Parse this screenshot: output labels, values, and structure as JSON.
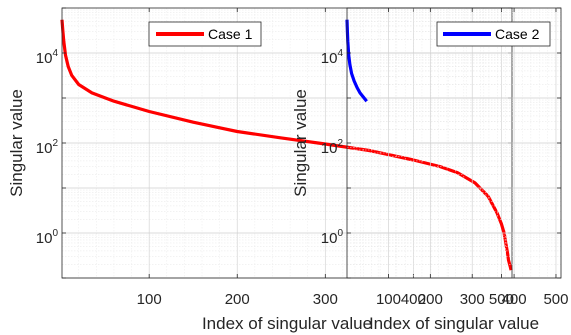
{
  "chart_data": [
    {
      "type": "line",
      "xlabel": "Index of singular value",
      "ylabel": "Singular value",
      "xlim": [
        1,
        512
      ],
      "ylim": [
        0.1,
        100000
      ],
      "yscale": "log",
      "grid": true,
      "minor_grid": true,
      "legend_placement": "top-right",
      "x_ticks": [
        {
          "value": 100,
          "label": "100"
        },
        {
          "value": 200,
          "label": "200"
        },
        {
          "value": 300,
          "label": "300"
        },
        {
          "value": 400,
          "label": "400"
        },
        {
          "value": 500,
          "label": "500"
        }
      ],
      "y_ticks": [
        {
          "value": 1,
          "base": "10",
          "exp": "0"
        },
        {
          "value": 100,
          "base": "10",
          "exp": "2"
        },
        {
          "value": 10000,
          "base": "10",
          "exp": "4"
        }
      ],
      "series": [
        {
          "name": "Case 1",
          "color": "#ff0000",
          "x": [
            1,
            2,
            3,
            5,
            8,
            12,
            20,
            35,
            60,
            100,
            150,
            200,
            250,
            300,
            350,
            400,
            430,
            450,
            470,
            485,
            495,
            500,
            503,
            505,
            507,
            508,
            510,
            511
          ],
          "y": [
            55000,
            30000,
            18000,
            9000,
            5000,
            3200,
            2000,
            1300,
            850,
            500,
            290,
            180,
            130,
            95,
            68,
            42,
            30,
            22,
            13,
            6.5,
            2.8,
            1.6,
            1.0,
            0.6,
            0.35,
            0.25,
            0.18,
            0.15
          ]
        }
      ]
    },
    {
      "type": "line",
      "xlabel": "Index of singular value",
      "ylabel": "Singular value",
      "xlim": [
        1,
        512
      ],
      "ylim": [
        0.1,
        100000
      ],
      "yscale": "log",
      "grid": true,
      "minor_grid": true,
      "legend_placement": "top-right",
      "x_ticks": [
        {
          "value": 100,
          "label": "100"
        },
        {
          "value": 200,
          "label": "200"
        },
        {
          "value": 300,
          "label": "300"
        },
        {
          "value": 400,
          "label": "400"
        },
        {
          "value": 500,
          "label": "500"
        }
      ],
      "y_ticks": [
        {
          "value": 1,
          "base": "10",
          "exp": "0"
        },
        {
          "value": 100,
          "base": "10",
          "exp": "2"
        },
        {
          "value": 10000,
          "base": "10",
          "exp": "4"
        }
      ],
      "series": [
        {
          "name": "Case 2",
          "color": "#0000ff",
          "x": [
            1,
            2,
            3,
            5,
            8,
            12,
            18,
            25,
            32,
            40,
            48
          ],
          "y": [
            55000,
            30000,
            18000,
            9000,
            5500,
            3500,
            2400,
            1700,
            1300,
            1050,
            850
          ]
        }
      ]
    }
  ]
}
